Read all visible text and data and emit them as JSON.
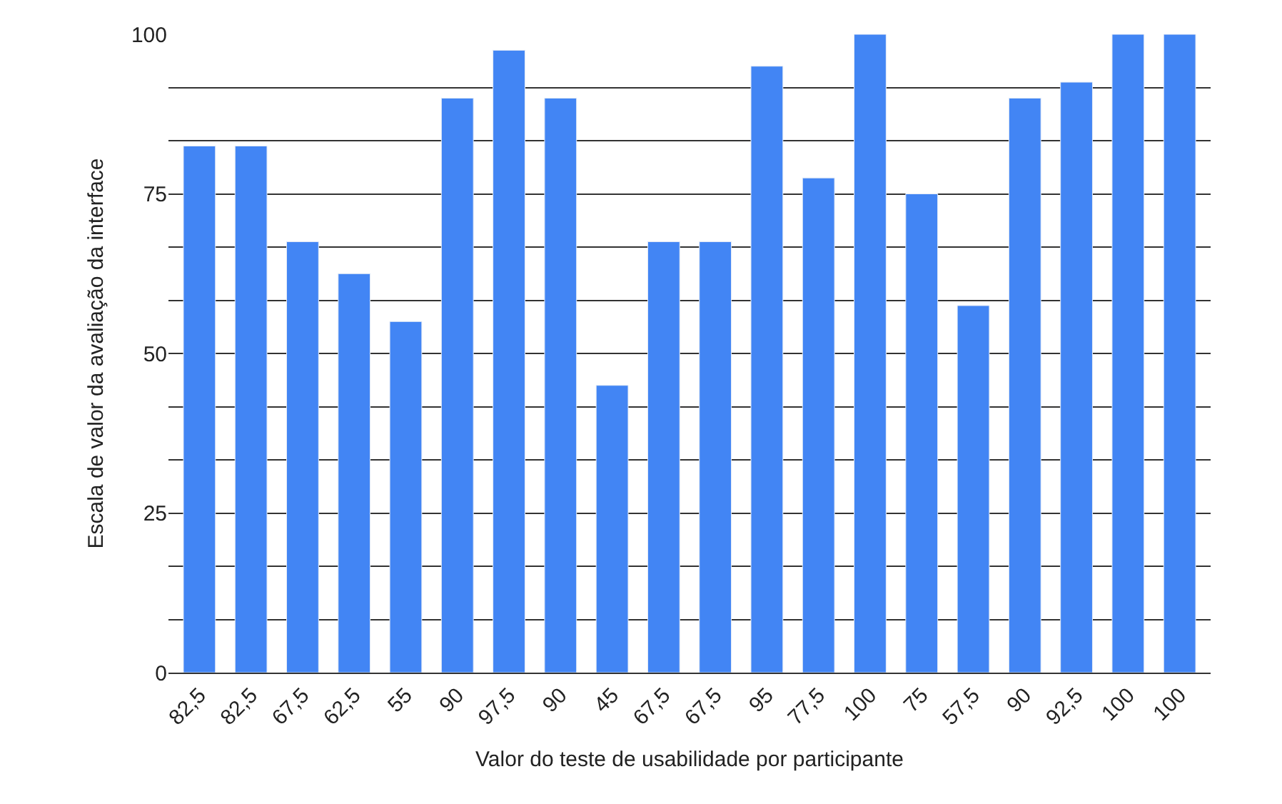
{
  "chart_data": {
    "type": "bar",
    "xlabel": "Valor do teste de usabilidade por participante",
    "ylabel": "Escala de valor da avaliação da interface",
    "categories": [
      "82,5",
      "82,5",
      "67,5",
      "62,5",
      "55",
      "90",
      "97,5",
      "90",
      "45",
      "67,5",
      "67,5",
      "95",
      "77,5",
      "100",
      "75",
      "57,5",
      "90",
      "92,5",
      "100",
      "100"
    ],
    "series": [
      {
        "color": "#4285f4",
        "values": [
          82.5,
          82.5,
          67.5,
          62.5,
          55,
          90,
          97.5,
          90,
          45,
          67.5,
          67.5,
          95,
          77.5,
          100,
          75,
          57.5,
          90,
          92.5,
          100,
          100
        ]
      }
    ],
    "ylim": [
      0,
      100
    ],
    "yticks": [
      0,
      {
        "value": 8.333,
        "label": null
      },
      {
        "value": 16.667,
        "label": null
      },
      25,
      {
        "value": 33.333,
        "label": null
      },
      {
        "value": 41.667,
        "label": null
      },
      50,
      {
        "value": 58.333,
        "label": null
      },
      {
        "value": 66.667,
        "label": null
      },
      75,
      {
        "value": 83.333,
        "label": null
      },
      {
        "value": 91.667,
        "label": null
      },
      100
    ],
    "grid": "y"
  }
}
